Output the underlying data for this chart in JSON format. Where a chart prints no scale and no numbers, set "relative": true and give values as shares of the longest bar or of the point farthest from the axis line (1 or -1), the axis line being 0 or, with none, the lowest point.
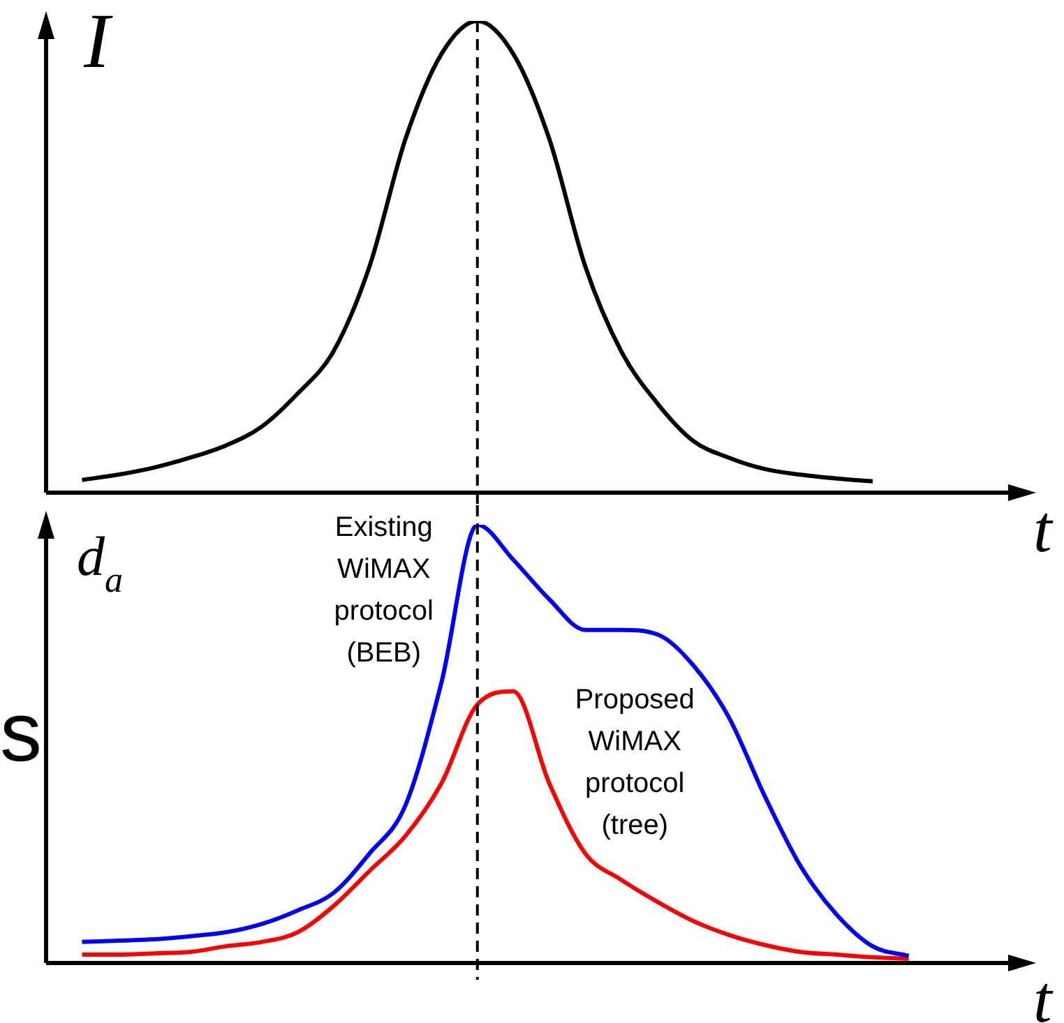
{
  "chart_data": [
    {
      "type": "line",
      "ylabel": "I",
      "xlabel": "t",
      "relative": true,
      "legend": false,
      "marker": "none",
      "categories": [
        null,
        null,
        null,
        null,
        null,
        null,
        null,
        null,
        null,
        null,
        null,
        null,
        null,
        null,
        null,
        null,
        null,
        null,
        null,
        null,
        null,
        null,
        null,
        null,
        null,
        null,
        null,
        null
      ],
      "series": [
        {
          "color": "#000000",
          "values": [
            null,
            0.027,
            0.038,
            0.053,
            0.074,
            0.1,
            0.14,
            0.21,
            0.3,
            0.48,
            0.75,
            0.93,
            1,
            0.93,
            0.75,
            0.48,
            0.3,
            0.19,
            0.11,
            0.074,
            0.05,
            0.038,
            0.03,
            0.024,
            null,
            null,
            null,
            null
          ]
        }
      ]
    },
    {
      "type": "line",
      "ylabel": "d$_{a}$",
      "xlabel": "t",
      "relative": true,
      "legend": false,
      "marker": "none",
      "categories": [
        null,
        null,
        null,
        null,
        null,
        null,
        null,
        null,
        null,
        null,
        null,
        null,
        null,
        null,
        null,
        null,
        null,
        null,
        null,
        null,
        null,
        null,
        null,
        null,
        null,
        null,
        null,
        null
      ],
      "series": [
        {
          "name": "Existing WiMAX protocol (BEB)",
          "color": "#0000ff",
          "values": [
            null,
            0.048,
            0.051,
            0.054,
            0.061,
            0.07,
            0.089,
            0.12,
            0.16,
            0.25,
            0.36,
            0.64,
            1,
            0.92,
            0.83,
            0.76,
            0.76,
            0.75,
            0.68,
            0.56,
            0.38,
            0.22,
            0.11,
            0.038,
            0.016,
            null,
            null,
            null
          ]
        },
        {
          "name": "Proposed WiMAX protocol (tree)",
          "color": "#ff0000",
          "values": [
            null,
            0.019,
            0.019,
            0.022,
            0.025,
            0.038,
            0.048,
            0.07,
            0.13,
            0.21,
            0.29,
            0.41,
            0.59,
            0.62,
            0.41,
            0.25,
            0.19,
            0.14,
            0.096,
            0.064,
            0.041,
            0.025,
            0.019,
            0.013,
            0.01,
            null,
            null,
            null
          ]
        }
      ],
      "annotations": [
        "s"
      ]
    }
  ]
}
